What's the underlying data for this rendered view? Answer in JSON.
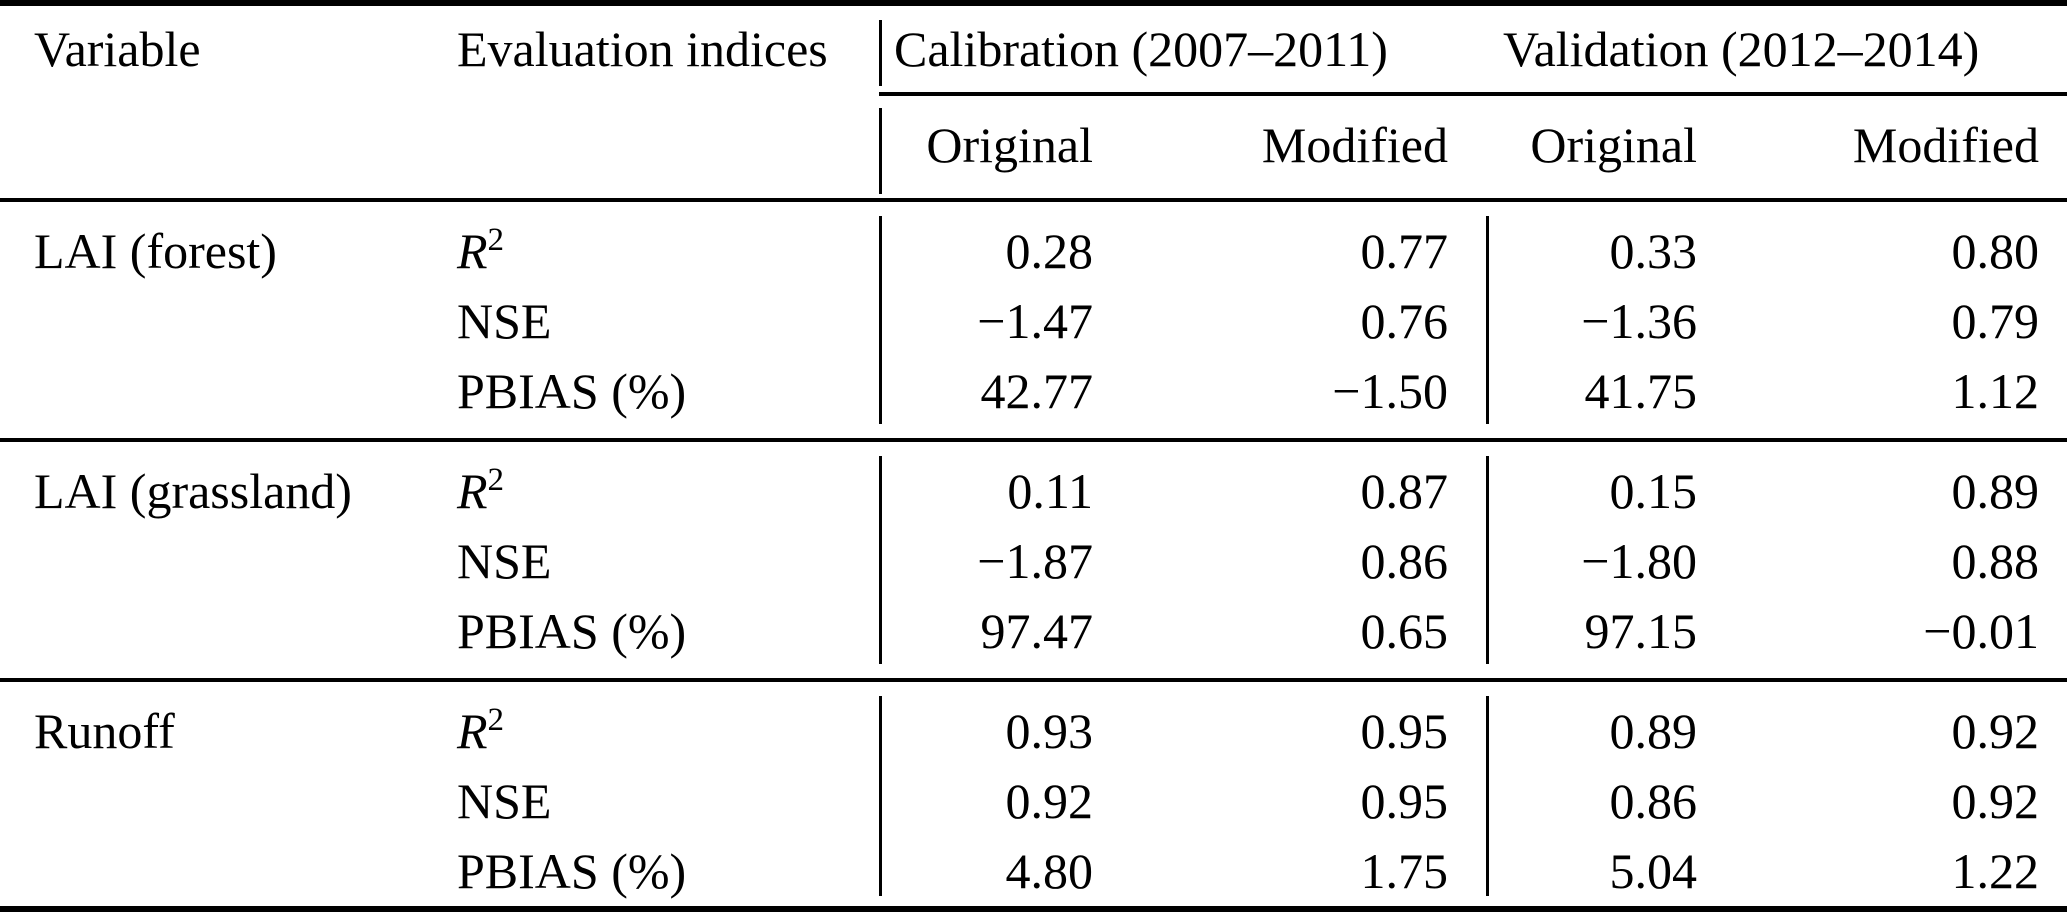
{
  "header": {
    "variable": "Variable",
    "eval_indices": "Evaluation indices",
    "calibration": "Calibration (2007–2011)",
    "validation": "Validation (2012–2014)",
    "cal_original": "Original",
    "cal_modified": "Modified",
    "val_original": "Original",
    "val_modified": "Modified"
  },
  "blocks": [
    {
      "variable": "LAI (forest)",
      "rows": [
        {
          "label_base": "R",
          "label_sup": "2",
          "values": [
            "0.28",
            "0.77",
            "0.33",
            "0.80"
          ]
        },
        {
          "label_base": "NSE",
          "label_sup": "",
          "values": [
            "−1.47",
            "0.76",
            "−1.36",
            "0.79"
          ]
        },
        {
          "label_base": "PBIAS (%)",
          "label_sup": "",
          "values": [
            "42.77",
            "−1.50",
            "41.75",
            "1.12"
          ]
        }
      ]
    },
    {
      "variable": "LAI (grassland)",
      "rows": [
        {
          "label_base": "R",
          "label_sup": "2",
          "values": [
            "0.11",
            "0.87",
            "0.15",
            "0.89"
          ]
        },
        {
          "label_base": "NSE",
          "label_sup": "",
          "values": [
            "−1.87",
            "0.86",
            "−1.80",
            "0.88"
          ]
        },
        {
          "label_base": "PBIAS (%)",
          "label_sup": "",
          "values": [
            "97.47",
            "0.65",
            "97.15",
            "−0.01"
          ]
        }
      ]
    },
    {
      "variable": "Runoff",
      "rows": [
        {
          "label_base": "R",
          "label_sup": "2",
          "values": [
            "0.93",
            "0.95",
            "0.89",
            "0.92"
          ]
        },
        {
          "label_base": "NSE",
          "label_sup": "",
          "values": [
            "0.92",
            "0.95",
            "0.86",
            "0.92"
          ]
        },
        {
          "label_base": "PBIAS (%)",
          "label_sup": "",
          "values": [
            "4.80",
            "1.75",
            "5.04",
            "1.22"
          ]
        }
      ]
    }
  ],
  "colors": {
    "text": "#000000",
    "rule": "#000000",
    "background": "#ffffff"
  }
}
